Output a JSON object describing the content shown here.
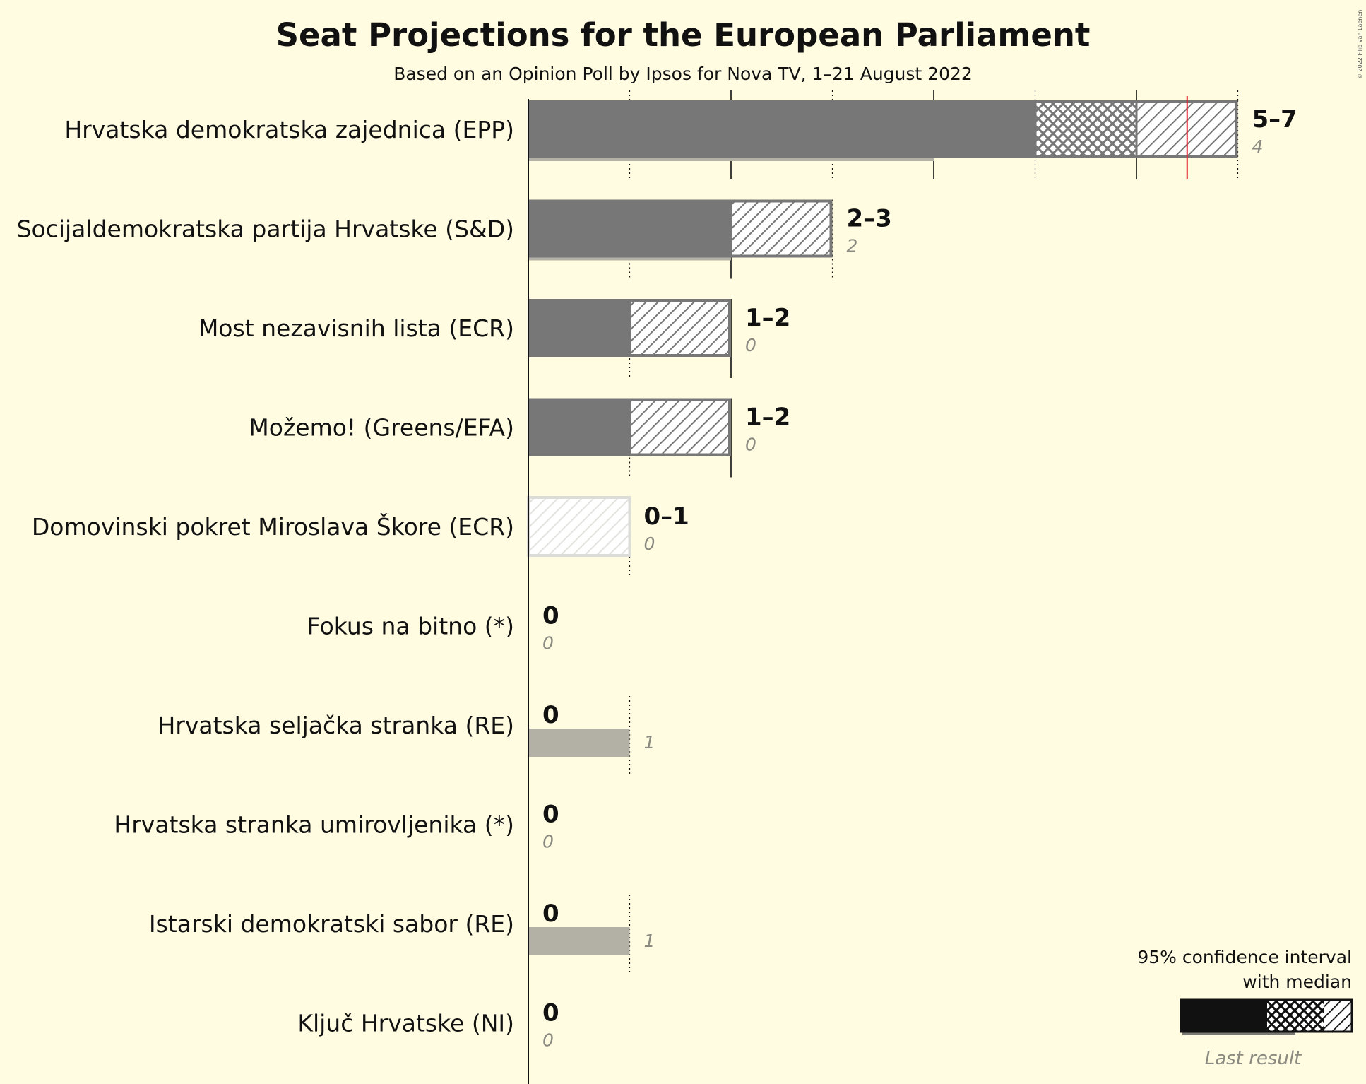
{
  "chart_data": {
    "type": "bar",
    "title": "Seat Projections for the European Parliament",
    "subtitle": "Based on an Opinion Poll by Ipsos for Nova TV, 1–21 August 2022",
    "orientation": "horizontal",
    "xlim": [
      0,
      7
    ],
    "majority_line": 6.5,
    "series_names": [
      "95% confidence interval",
      "median",
      "Last result"
    ],
    "parties": [
      {
        "name": "Hrvatska demokratska zajednica (EPP)",
        "range_label": "5–7",
        "low": 5,
        "median": 6,
        "high": 7,
        "last_result": 4,
        "last_label": "4"
      },
      {
        "name": "Socijaldemokratska partija Hrvatske (S&D)",
        "range_label": "2–3",
        "low": 2,
        "median": 2,
        "high": 3,
        "last_result": 2,
        "last_label": "2"
      },
      {
        "name": "Most nezavisnih lista (ECR)",
        "range_label": "1–2",
        "low": 1,
        "median": 1,
        "high": 2,
        "last_result": 0,
        "last_label": "0"
      },
      {
        "name": "Možemo! (Greens/EFA)",
        "range_label": "1–2",
        "low": 1,
        "median": 1,
        "high": 2,
        "last_result": 0,
        "last_label": "0"
      },
      {
        "name": "Domovinski pokret Miroslava Škore (ECR)",
        "range_label": "0–1",
        "low": 0,
        "median": 0,
        "high": 1,
        "last_result": 0,
        "last_label": "0",
        "faded": true
      },
      {
        "name": "Fokus na bitno (*)",
        "range_label": "0",
        "low": 0,
        "median": 0,
        "high": 0,
        "last_result": 0,
        "last_label": "0"
      },
      {
        "name": "Hrvatska seljačka stranka (RE)",
        "range_label": "0",
        "low": 0,
        "median": 0,
        "high": 0,
        "last_result": 1,
        "last_label": "1"
      },
      {
        "name": "Hrvatska stranka umirovljenika (*)",
        "range_label": "0",
        "low": 0,
        "median": 0,
        "high": 0,
        "last_result": 0,
        "last_label": "0"
      },
      {
        "name": "Istarski demokratski sabor (RE)",
        "range_label": "0",
        "low": 0,
        "median": 0,
        "high": 0,
        "last_result": 1,
        "last_label": "1"
      },
      {
        "name": "Ključ Hrvatske (NI)",
        "range_label": "0",
        "low": 0,
        "median": 0,
        "high": 0,
        "last_result": 0,
        "last_label": "0"
      }
    ]
  },
  "legend": {
    "line1": "95% confidence interval",
    "line2": "with median",
    "last_result": "Last result"
  },
  "copyright": "© 2022 Filip van Laenen",
  "colors": {
    "background": "#fffce2",
    "bar": "#777777",
    "last_result": "#b3b1a5",
    "majority_line": "#e8242c",
    "faded": "#dcdcd8"
  }
}
